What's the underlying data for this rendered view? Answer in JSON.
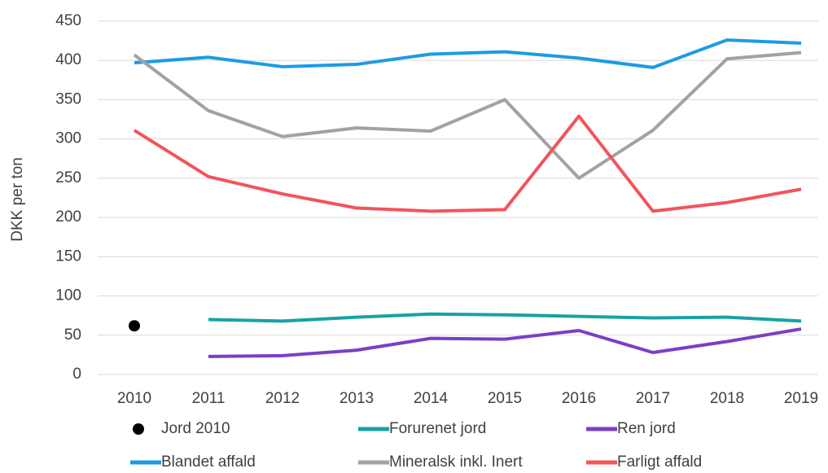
{
  "chart_data": {
    "type": "line",
    "y_label": "DKK per ton",
    "categories": [
      "2010",
      "2011",
      "2012",
      "2013",
      "2014",
      "2015",
      "2016",
      "2017",
      "2018",
      "2019"
    ],
    "series": [
      {
        "name": "Jord 2010",
        "color": "#000000",
        "style": "marker",
        "values": [
          62,
          null,
          null,
          null,
          null,
          null,
          null,
          null,
          null,
          null
        ]
      },
      {
        "name": "Forurenet jord",
        "color": "#17a2a2",
        "values": [
          null,
          70,
          68,
          73,
          77,
          76,
          74,
          72,
          73,
          68
        ]
      },
      {
        "name": "Ren jord",
        "color": "#7a3fc6",
        "values": [
          null,
          23,
          24,
          31,
          46,
          45,
          56,
          28,
          42,
          58
        ]
      },
      {
        "name": "Blandet affald",
        "color": "#1e9be4",
        "values": [
          397,
          404,
          392,
          395,
          408,
          411,
          403,
          391,
          426,
          422
        ]
      },
      {
        "name": "Mineralsk inkl. Inert",
        "color": "#a2a2a2",
        "values": [
          407,
          336,
          303,
          314,
          310,
          350,
          250,
          311,
          402,
          410
        ]
      },
      {
        "name": "Farligt affald",
        "color": "#f2545b",
        "values": [
          311,
          252,
          230,
          212,
          208,
          210,
          329,
          208,
          219,
          236
        ]
      }
    ],
    "ylim": [
      0,
      450
    ],
    "yticks": [
      0,
      50,
      100,
      150,
      200,
      250,
      300,
      350,
      400,
      450
    ],
    "grid": true
  }
}
